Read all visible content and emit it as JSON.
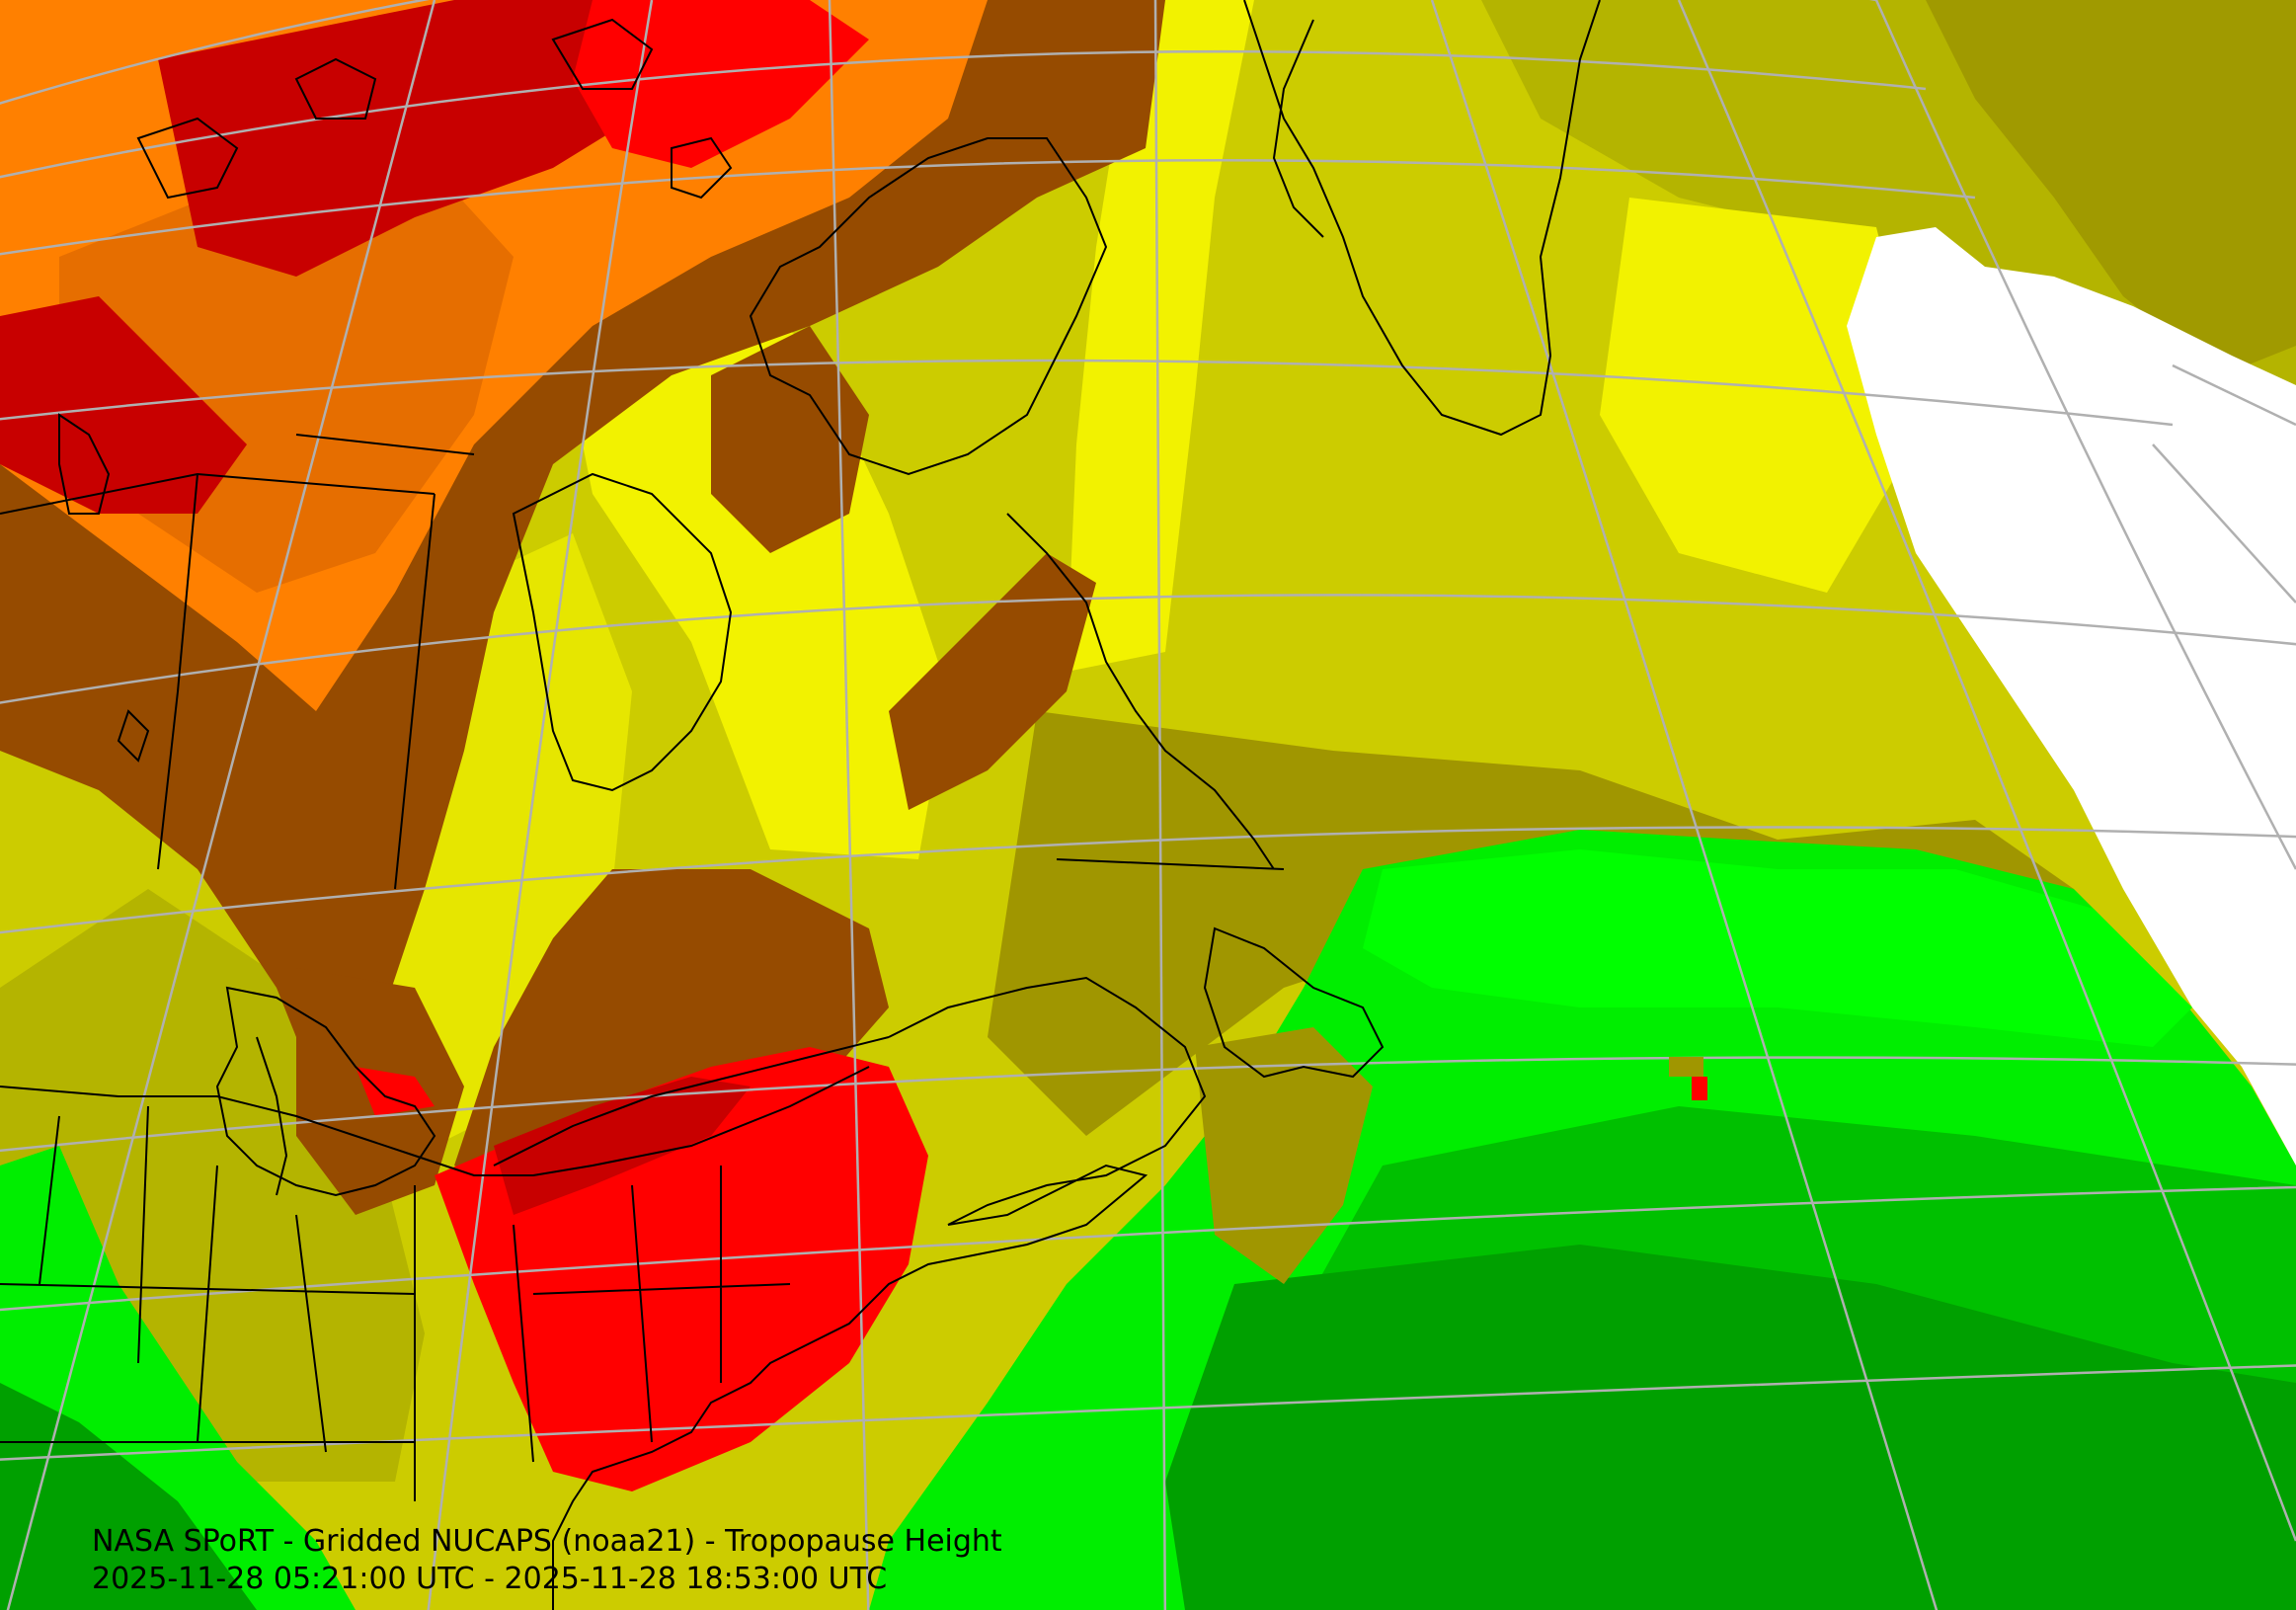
{
  "caption": {
    "title": "NASA SPoRT - Gridded NUCAPS (noaa21) - Tropopause Height",
    "time_range": "2025-11-28 05:21:00 UTC - 2025-11-28 18:53:00 UTC"
  },
  "colors": {
    "no_data": "#ffffff",
    "red": "#ff0000",
    "dark_red": "#c80000",
    "orange": "#ff8000",
    "dark_orange": "#e66e00",
    "brown": "#964b00",
    "dark_brown": "#7a3c00",
    "yellow": "#f2f200",
    "olive_yellow": "#cccc00",
    "olive": "#b4b400",
    "dark_olive": "#a09600",
    "green": "#00ee00",
    "bright_green": "#00ff00",
    "dark_green": "#00a000",
    "mid_green": "#00c000",
    "graticule": "#b0b0b0",
    "coastline": "#000000"
  }
}
